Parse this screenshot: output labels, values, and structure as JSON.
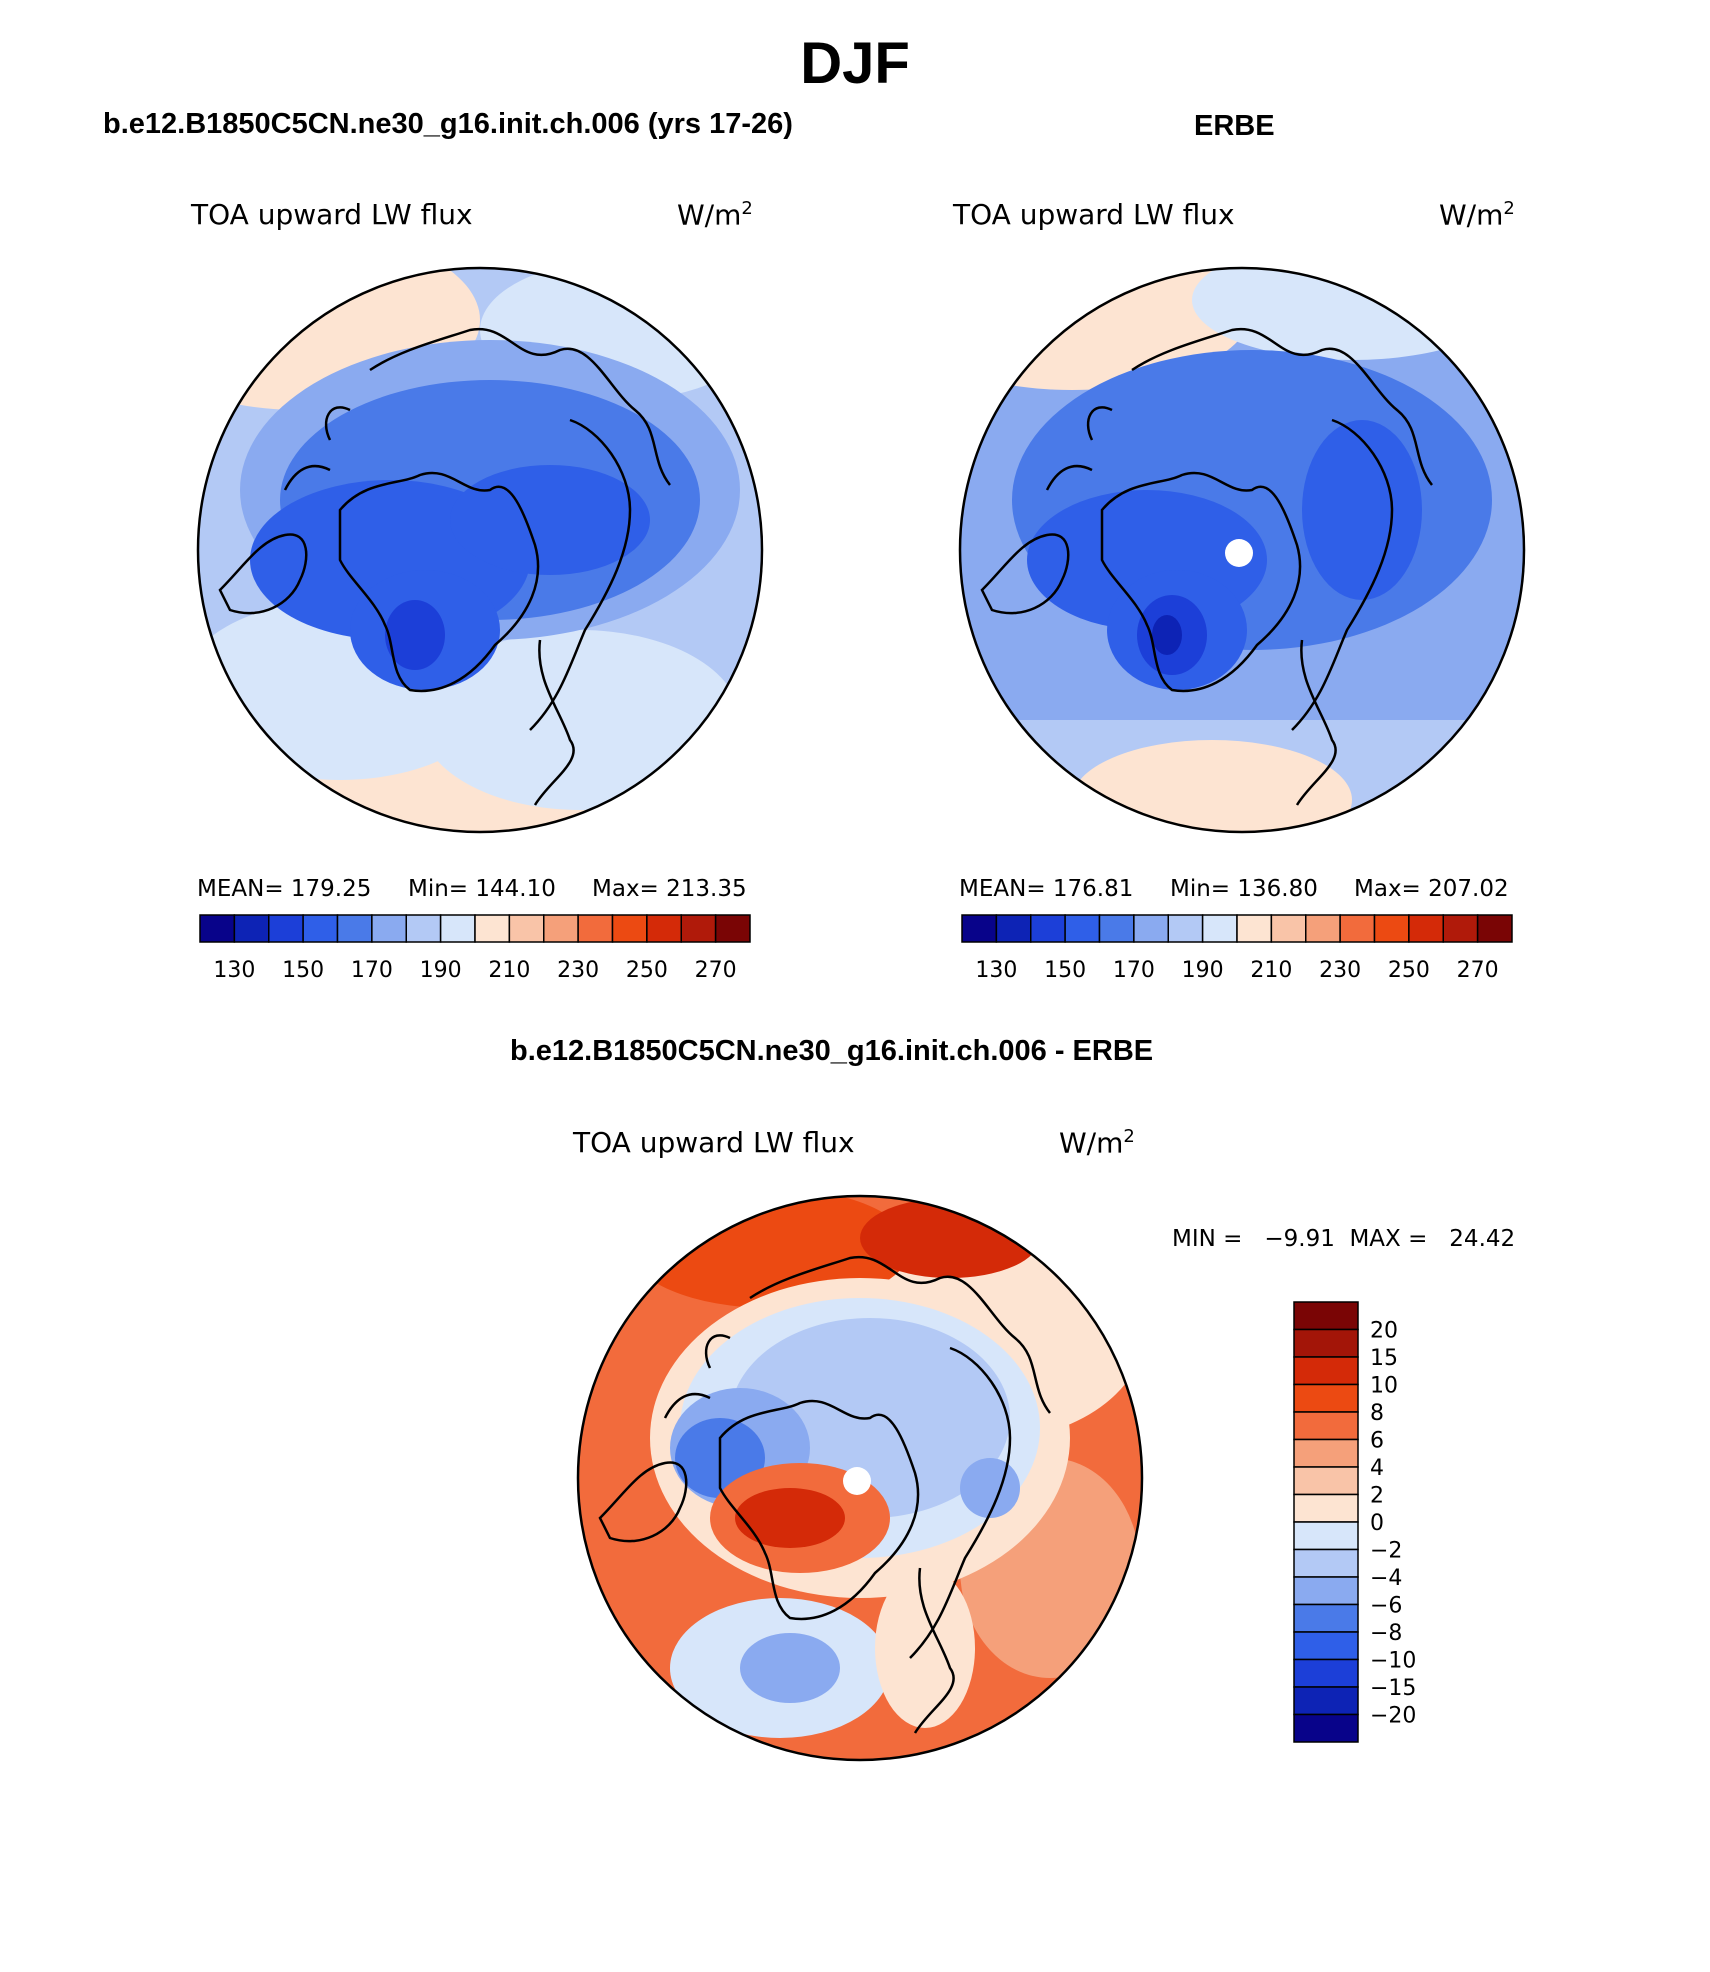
{
  "figure": {
    "title": "DJF"
  },
  "panels": [
    {
      "title": "b.e12.B1850C5CN.ne30_g16.init.ch.006 (yrs 17-26)",
      "variable": "TOA upward LW flux",
      "units": "W/m",
      "units_exp": "2",
      "stats": {
        "mean": "MEAN= 179.25",
        "min": "Min= 144.10",
        "max": "Max= 213.35"
      },
      "colorbar_ticks": [
        "130",
        "150",
        "170",
        "190",
        "210",
        "230",
        "250",
        "270"
      ]
    },
    {
      "title": "ERBE",
      "variable": "TOA upward LW flux",
      "units": "W/m",
      "units_exp": "2",
      "stats": {
        "mean": "MEAN= 176.81",
        "min": "Min= 136.80",
        "max": "Max= 207.02"
      },
      "colorbar_ticks": [
        "130",
        "150",
        "170",
        "190",
        "210",
        "230",
        "250",
        "270"
      ]
    },
    {
      "title": "b.e12.B1850C5CN.ne30_g16.init.ch.006 - ERBE",
      "variable": "TOA upward LW flux",
      "units": "W/m",
      "units_exp": "2",
      "stats": {
        "minmax": "MIN =   −9.91  MAX =   24.42"
      },
      "colorbar_ticks": [
        "20",
        "15",
        "10",
        "8",
        "6",
        "4",
        "2",
        "0",
        "−2",
        "−4",
        "−6",
        "−8",
        "−10",
        "−15",
        "−20"
      ]
    }
  ],
  "colors": {
    "abs_palette": [
      "#08038a",
      "#0d23b5",
      "#1c3fd8",
      "#2f5fe8",
      "#4a7ae8",
      "#8aaaf0",
      "#b3c9f5",
      "#d7e6fa",
      "#fde4d2",
      "#f9c4a8",
      "#f5a07a",
      "#f26b3c",
      "#ec4a12",
      "#d42a08",
      "#b01a0a",
      "#7a0505"
    ],
    "diff_palette": [
      "#7a0505",
      "#a31508",
      "#d42a08",
      "#ec4a12",
      "#f26b3c",
      "#f5a07a",
      "#f9c4a8",
      "#fde4d2",
      "#d7e6fa",
      "#b3c9f5",
      "#8aaaf0",
      "#4a7ae8",
      "#2f5fe8",
      "#1c3fd8",
      "#0d23b5",
      "#08038a"
    ]
  }
}
